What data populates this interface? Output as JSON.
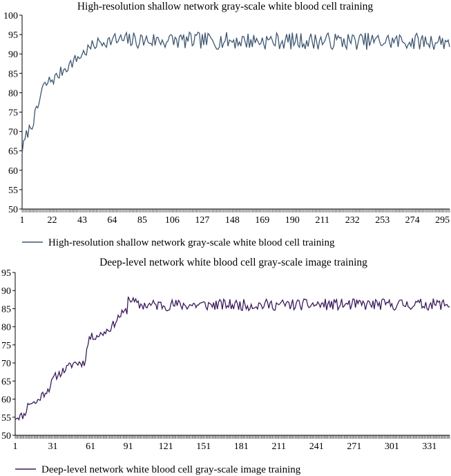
{
  "chart_data": [
    {
      "type": "line",
      "title": "High-resolution shallow network gray-scale white blood cell training",
      "xlabel": "",
      "ylabel": "",
      "x_range": [
        1,
        300
      ],
      "xticks": [
        1,
        22,
        43,
        64,
        85,
        106,
        127,
        148,
        169,
        190,
        211,
        232,
        253,
        274,
        295
      ],
      "ylim": [
        50,
        100
      ],
      "yticks": [
        50,
        55,
        60,
        65,
        70,
        75,
        80,
        85,
        90,
        95,
        100
      ],
      "legend_position": "bottom-left",
      "color": "#3d5670",
      "series": [
        {
          "name": "High-resolution shallow network gray-scale white blood cell training",
          "anchors": [
            [
              1,
              65
            ],
            [
              4,
              69
            ],
            [
              8,
              72
            ],
            [
              12,
              76
            ],
            [
              15,
              81
            ],
            [
              20,
              83
            ],
            [
              25,
              84
            ],
            [
              30,
              86
            ],
            [
              35,
              87.5
            ],
            [
              40,
              89
            ],
            [
              45,
              90.5
            ],
            [
              50,
              92
            ],
            [
              55,
              93
            ],
            [
              65,
              93.5
            ],
            [
              300,
              93.2
            ]
          ],
          "noise": 2.2,
          "min": 89.5,
          "max": 96,
          "seed": 7
        }
      ]
    },
    {
      "type": "line",
      "title": "Deep-level network white blood cell gray-scale image training",
      "xlabel": "",
      "ylabel": "",
      "x_range": [
        1,
        347
      ],
      "xticks": [
        1,
        31,
        61,
        91,
        121,
        151,
        181,
        211,
        241,
        271,
        301,
        331
      ],
      "ylim": [
        50,
        95
      ],
      "yticks": [
        50,
        55,
        60,
        65,
        70,
        75,
        80,
        85,
        90,
        95
      ],
      "legend_position": "bottom-left",
      "color": "#3a1a5c",
      "series": [
        {
          "name": "Deep-level network white blood cell gray-scale image training",
          "anchors": [
            [
              1,
              55
            ],
            [
              8,
              55.5
            ],
            [
              12,
              59
            ],
            [
              18,
              59
            ],
            [
              22,
              61
            ],
            [
              28,
              63
            ],
            [
              32,
              66
            ],
            [
              40,
              68
            ],
            [
              48,
              70
            ],
            [
              56,
              70
            ],
            [
              60,
              77
            ],
            [
              70,
              78
            ],
            [
              78,
              80
            ],
            [
              84,
              83
            ],
            [
              90,
              84.5
            ],
            [
              91,
              88
            ],
            [
              100,
              86
            ],
            [
              347,
              86.2
            ]
          ],
          "noise": 1.6,
          "min": 84,
          "max": 89,
          "seed": 11
        }
      ]
    }
  ]
}
